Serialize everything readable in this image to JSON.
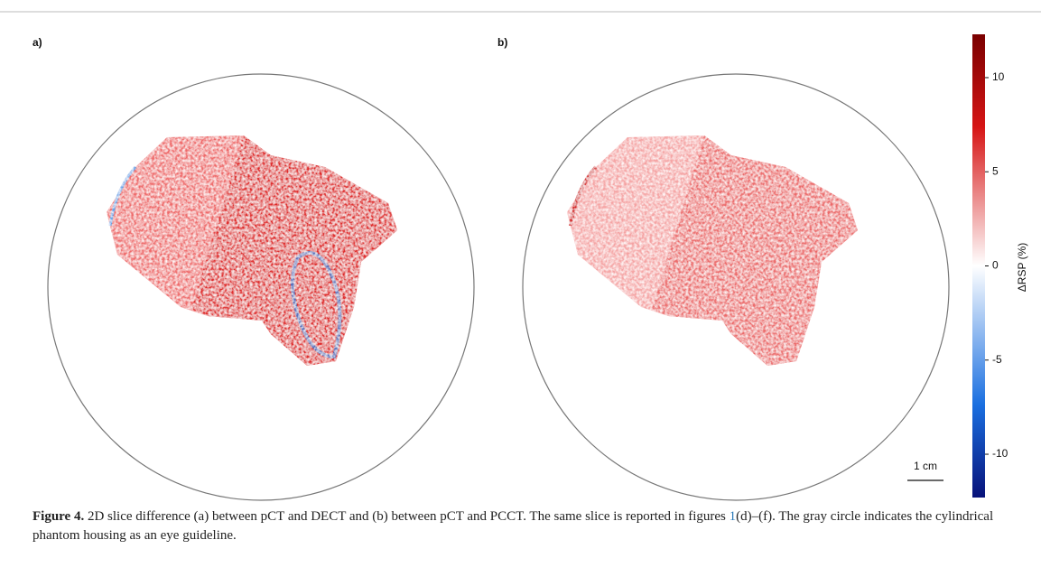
{
  "panels": [
    "a)",
    "b)"
  ],
  "colorbar": {
    "label": "ΔRSP (%)",
    "ylim": [
      -12.3,
      12.3
    ],
    "yticks": [
      10,
      5,
      0,
      -5,
      -10
    ]
  },
  "scale_bar": "1 cm",
  "caption": {
    "label": "Figure 4.",
    "text_before_link": " 2D slice difference (a) between pCT and DECT and (b) between pCT and PCCT. The same slice is reported in figures ",
    "link": "1",
    "text_after_link": "(d)–(f). The gray circle indicates the cylindrical phantom housing as an eye guideline."
  }
}
